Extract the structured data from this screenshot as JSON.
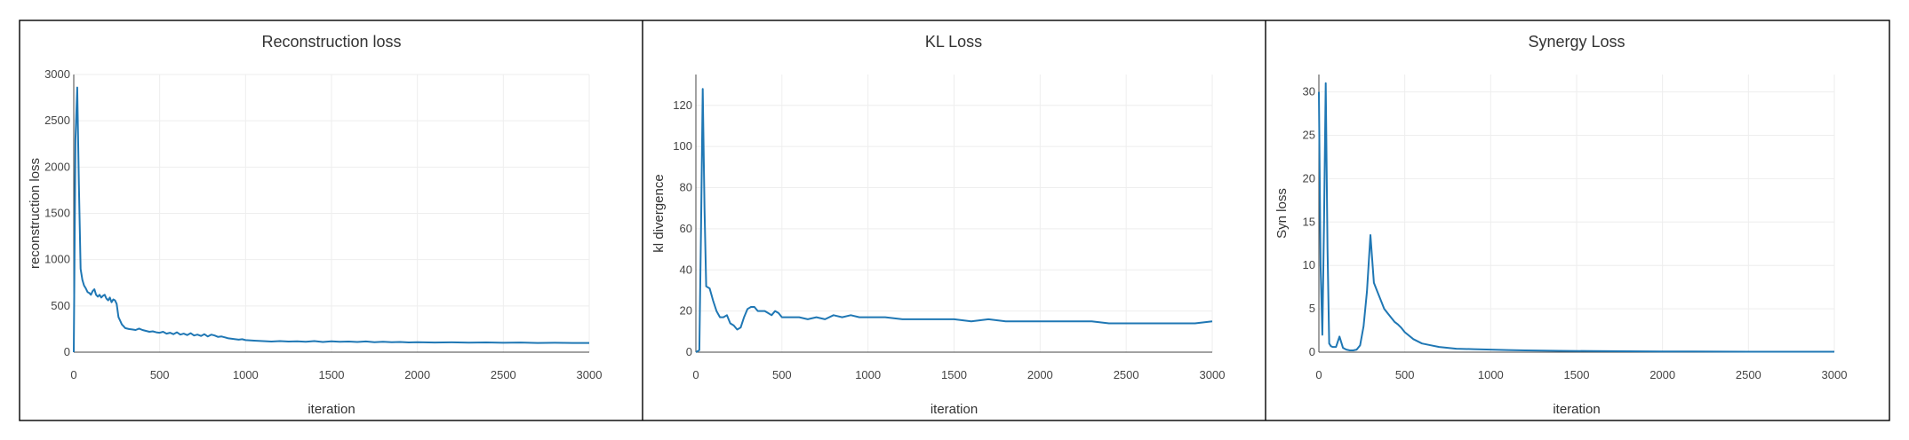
{
  "colors": {
    "series": "#1f77b4"
  },
  "chart_data": [
    {
      "type": "line",
      "title": "Reconstruction loss",
      "xlabel": "iteration",
      "ylabel": "reconstruction loss",
      "xlim": [
        0,
        3000
      ],
      "ylim": [
        0,
        3000
      ],
      "xticks": [
        0,
        500,
        1000,
        1500,
        2000,
        2500,
        3000
      ],
      "yticks": [
        0,
        500,
        1000,
        1500,
        2000,
        2500,
        3000
      ],
      "grid": true,
      "series": [
        {
          "x": [
            0,
            10,
            20,
            30,
            40,
            50,
            60,
            70,
            80,
            90,
            100,
            110,
            120,
            130,
            140,
            150,
            160,
            170,
            180,
            190,
            200,
            210,
            220,
            230,
            240,
            250,
            260,
            270,
            280,
            290,
            300,
            320,
            340,
            360,
            380,
            400,
            420,
            440,
            460,
            480,
            500,
            520,
            540,
            560,
            580,
            600,
            620,
            640,
            660,
            680,
            700,
            720,
            740,
            760,
            780,
            800,
            820,
            840,
            860,
            880,
            900,
            920,
            940,
            960,
            980,
            1000,
            1050,
            1100,
            1150,
            1200,
            1250,
            1300,
            1350,
            1400,
            1450,
            1500,
            1550,
            1600,
            1650,
            1700,
            1750,
            1800,
            1850,
            1900,
            1950,
            2000,
            2100,
            2200,
            2300,
            2400,
            2500,
            2600,
            2700,
            2800,
            2850,
            2900,
            2950,
            3000
          ],
          "y": [
            0,
            2300,
            2860,
            1800,
            900,
            780,
            720,
            690,
            650,
            640,
            620,
            660,
            680,
            620,
            600,
            620,
            590,
            610,
            620,
            580,
            560,
            590,
            540,
            570,
            560,
            520,
            380,
            340,
            300,
            280,
            260,
            250,
            245,
            240,
            255,
            240,
            230,
            220,
            225,
            215,
            210,
            220,
            200,
            210,
            195,
            215,
            190,
            200,
            185,
            205,
            180,
            190,
            175,
            195,
            170,
            190,
            180,
            165,
            170,
            160,
            150,
            145,
            140,
            135,
            140,
            130,
            125,
            120,
            115,
            120,
            115,
            118,
            112,
            120,
            110,
            118,
            112,
            115,
            110,
            116,
            108,
            112,
            108,
            110,
            105,
            108,
            104,
            106,
            103,
            105,
            102,
            104,
            100,
            102,
            101,
            100,
            100,
            100
          ]
        }
      ]
    },
    {
      "type": "line",
      "title": "KL Loss",
      "xlabel": "iteration",
      "ylabel": "kl divergence",
      "xlim": [
        0,
        3000
      ],
      "ylim": [
        0,
        135
      ],
      "xticks": [
        0,
        500,
        1000,
        1500,
        2000,
        2500,
        3000
      ],
      "yticks": [
        0,
        20,
        40,
        60,
        80,
        100,
        120
      ],
      "grid": true,
      "series": [
        {
          "x": [
            0,
            20,
            30,
            40,
            50,
            60,
            80,
            100,
            120,
            140,
            160,
            180,
            200,
            220,
            240,
            260,
            280,
            300,
            320,
            340,
            360,
            380,
            400,
            420,
            440,
            460,
            480,
            500,
            550,
            600,
            650,
            700,
            750,
            800,
            850,
            900,
            950,
            1000,
            1100,
            1200,
            1300,
            1400,
            1500,
            1600,
            1700,
            1800,
            1900,
            2000,
            2100,
            2200,
            2300,
            2400,
            2500,
            2600,
            2700,
            2800,
            2900,
            3000
          ],
          "y": [
            0,
            1,
            60,
            128,
            70,
            32,
            31,
            25,
            20,
            17,
            17,
            18,
            14,
            13,
            11,
            12,
            17,
            21,
            22,
            22,
            20,
            20,
            20,
            19,
            18,
            20,
            19,
            17,
            17,
            17,
            16,
            17,
            16,
            18,
            17,
            18,
            17,
            17,
            17,
            16,
            16,
            16,
            16,
            15,
            16,
            15,
            15,
            15,
            15,
            15,
            15,
            14,
            14,
            14,
            14,
            14,
            14,
            15
          ]
        }
      ]
    },
    {
      "type": "line",
      "title": "Synergy Loss",
      "xlabel": "iteration",
      "ylabel": "Syn loss",
      "xlim": [
        0,
        3000
      ],
      "ylim": [
        0,
        32
      ],
      "xticks": [
        0,
        500,
        1000,
        1500,
        2000,
        2500,
        3000
      ],
      "yticks": [
        0,
        5,
        10,
        15,
        20,
        25,
        30
      ],
      "grid": true,
      "series": [
        {
          "x": [
            0,
            10,
            20,
            30,
            40,
            50,
            60,
            70,
            80,
            100,
            120,
            140,
            160,
            180,
            200,
            220,
            240,
            260,
            280,
            300,
            320,
            340,
            360,
            380,
            400,
            420,
            440,
            460,
            480,
            500,
            550,
            600,
            650,
            700,
            750,
            800,
            900,
            1000,
            1100,
            1200,
            1400,
            1600,
            1800,
            2000,
            2500,
            3000
          ],
          "y": [
            30,
            10,
            2,
            15,
            31,
            12,
            1,
            0.7,
            0.6,
            0.6,
            1.8,
            0.5,
            0.3,
            0.2,
            0.2,
            0.3,
            0.8,
            3,
            7,
            13.5,
            8,
            7,
            6,
            5,
            4.5,
            4,
            3.5,
            3.2,
            2.8,
            2.3,
            1.5,
            1.0,
            0.8,
            0.6,
            0.5,
            0.4,
            0.35,
            0.3,
            0.25,
            0.2,
            0.15,
            0.12,
            0.1,
            0.08,
            0.05,
            0.05
          ]
        }
      ]
    }
  ]
}
